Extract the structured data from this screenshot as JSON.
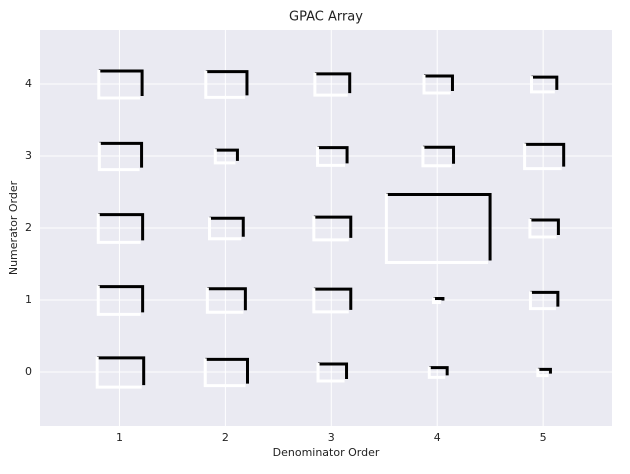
{
  "chart_data": {
    "type": "hinton",
    "title": "GPAC Array",
    "x_label": "Denominator Order",
    "y_label": "Numerator Order",
    "xlim": [
      0.25,
      5.65
    ],
    "ylim": [
      4.75,
      -0.75
    ],
    "xticks": [
      1,
      2,
      3,
      4,
      5
    ],
    "yticks": [
      0,
      1,
      2,
      3,
      4
    ],
    "positive_color": "#008000",
    "negative_color": "#ff0000",
    "grid": true,
    "values": [
      [
        0.42,
        -0.38,
        0.25,
        0.15,
        0.1
      ],
      [
        0.4,
        -0.34,
        0.33,
        -0.07,
        0.24
      ],
      [
        0.4,
        -0.3,
        0.33,
        0.96,
        0.25
      ],
      [
        0.38,
        -0.19,
        0.26,
        0.27,
        0.35
      ],
      [
        0.39,
        0.37,
        0.31,
        -0.25,
        0.22
      ]
    ]
  }
}
